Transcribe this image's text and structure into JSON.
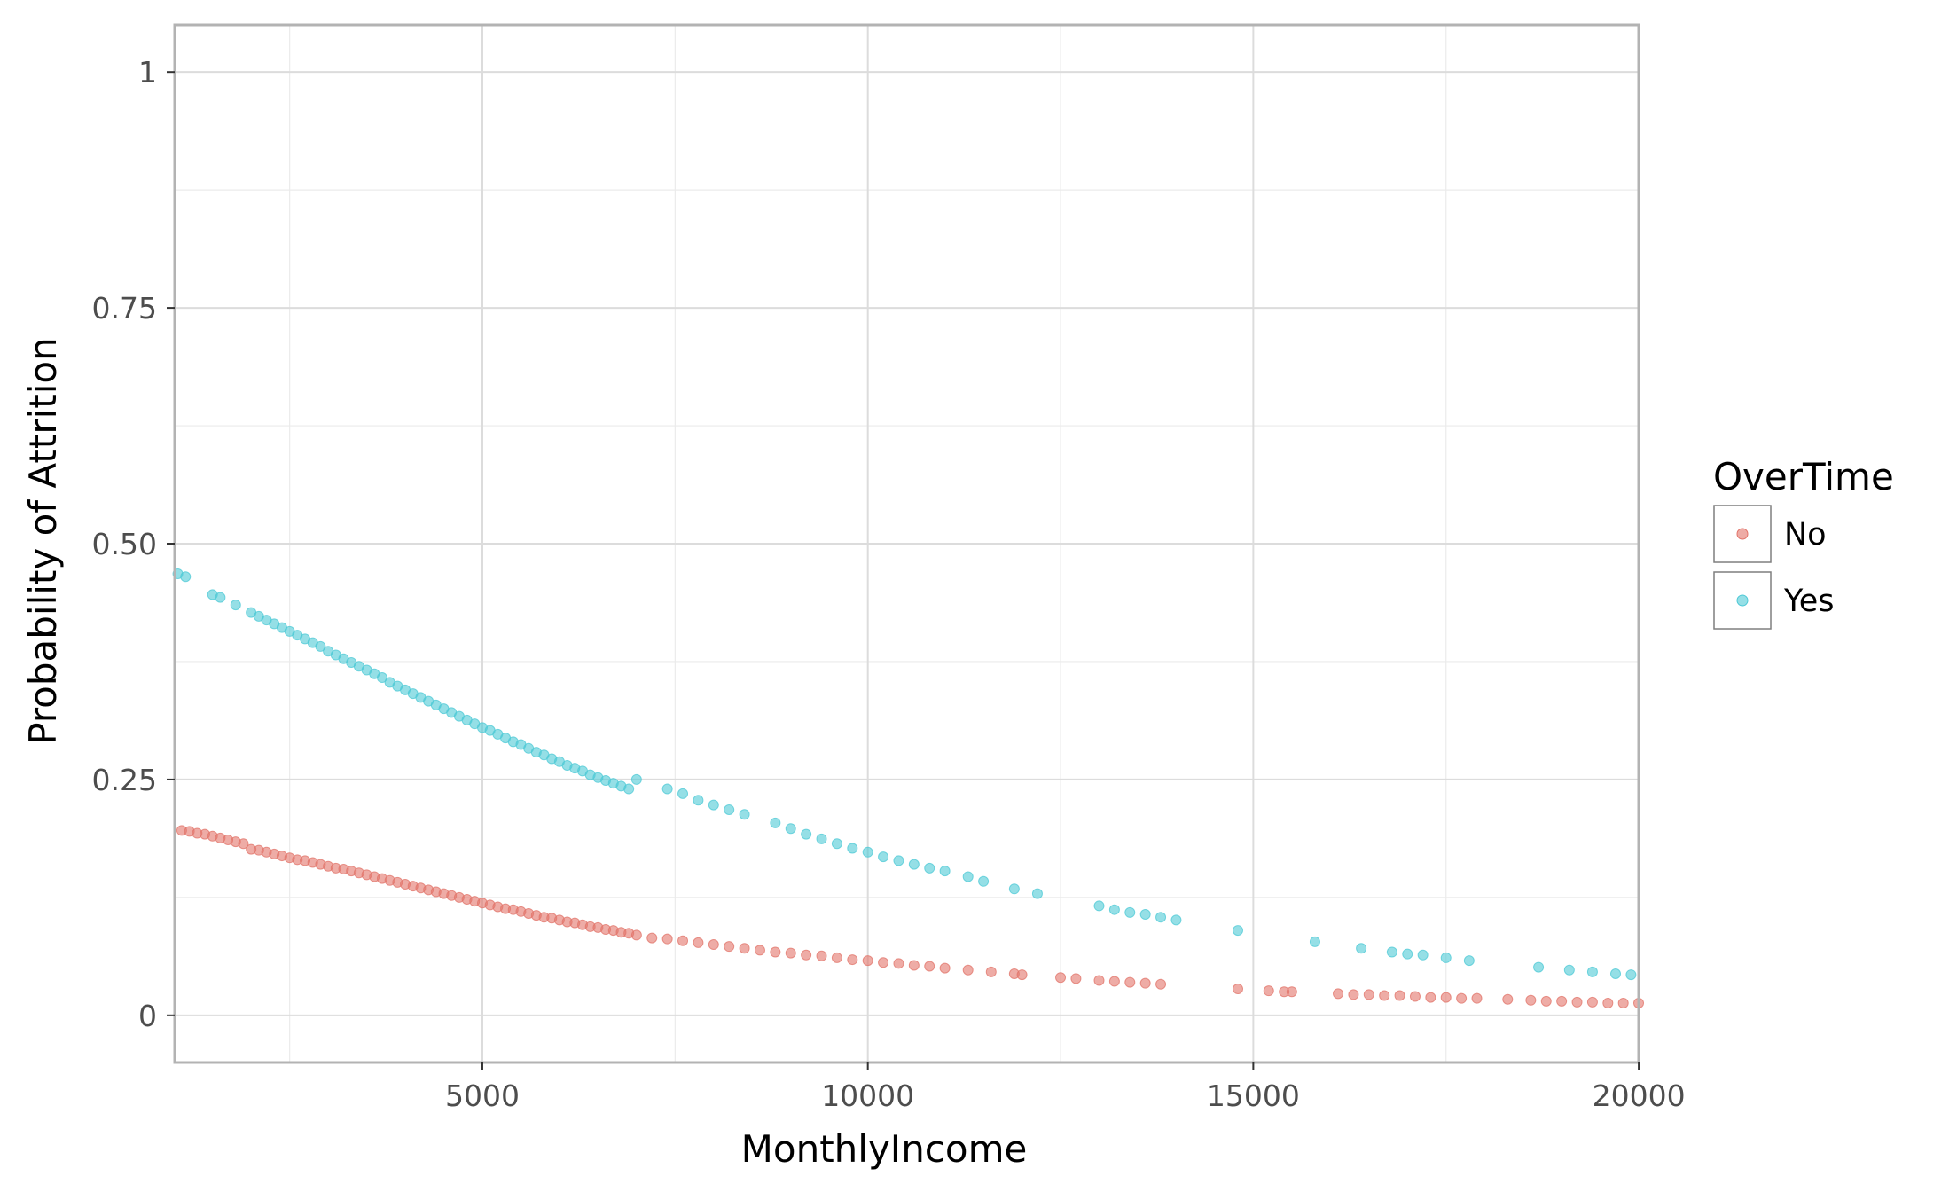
{
  "chart_data": {
    "type": "scatter",
    "title": "",
    "xlabel": "MonthlyIncome",
    "ylabel": "Probability of Attrition",
    "xlim": [
      1009,
      19999
    ],
    "ylim": [
      -0.05,
      1.05
    ],
    "x_ticks": [
      5000,
      10000,
      15000,
      20000
    ],
    "x_tick_labels": [
      "5000",
      "10000",
      "15000",
      "20000"
    ],
    "y_ticks": [
      0,
      0.25,
      0.5,
      0.75,
      1
    ],
    "y_tick_labels": [
      "0",
      "0.25",
      "0.50",
      "0.75",
      "1"
    ],
    "grid": true,
    "legend": {
      "title": "OverTime",
      "position": "right"
    },
    "series": [
      {
        "name": "No",
        "color": "#e2746a",
        "points": [
          [
            1100,
            0.196
          ],
          [
            1200,
            0.195
          ],
          [
            1300,
            0.193
          ],
          [
            1400,
            0.192
          ],
          [
            1500,
            0.19
          ],
          [
            1600,
            0.188
          ],
          [
            1700,
            0.186
          ],
          [
            1800,
            0.184
          ],
          [
            1900,
            0.182
          ],
          [
            2000,
            0.176
          ],
          [
            2100,
            0.175
          ],
          [
            2200,
            0.173
          ],
          [
            2300,
            0.171
          ],
          [
            2400,
            0.169
          ],
          [
            2500,
            0.167
          ],
          [
            2600,
            0.165
          ],
          [
            2700,
            0.164
          ],
          [
            2800,
            0.162
          ],
          [
            2900,
            0.16
          ],
          [
            3000,
            0.158
          ],
          [
            3100,
            0.156
          ],
          [
            3200,
            0.155
          ],
          [
            3300,
            0.153
          ],
          [
            3400,
            0.151
          ],
          [
            3500,
            0.149
          ],
          [
            3600,
            0.147
          ],
          [
            3700,
            0.145
          ],
          [
            3800,
            0.143
          ],
          [
            3900,
            0.141
          ],
          [
            4000,
            0.139
          ],
          [
            4100,
            0.137
          ],
          [
            4200,
            0.135
          ],
          [
            4300,
            0.133
          ],
          [
            4400,
            0.131
          ],
          [
            4500,
            0.129
          ],
          [
            4600,
            0.127
          ],
          [
            4700,
            0.125
          ],
          [
            4800,
            0.123
          ],
          [
            4900,
            0.121
          ],
          [
            5000,
            0.119
          ],
          [
            5100,
            0.117
          ],
          [
            5200,
            0.115
          ],
          [
            5300,
            0.113
          ],
          [
            5400,
            0.112
          ],
          [
            5500,
            0.11
          ],
          [
            5600,
            0.108
          ],
          [
            5700,
            0.106
          ],
          [
            5800,
            0.104
          ],
          [
            5900,
            0.103
          ],
          [
            6000,
            0.101
          ],
          [
            6100,
            0.099
          ],
          [
            6200,
            0.098
          ],
          [
            6300,
            0.096
          ],
          [
            6400,
            0.094
          ],
          [
            6500,
            0.093
          ],
          [
            6600,
            0.091
          ],
          [
            6700,
            0.09
          ],
          [
            6800,
            0.088
          ],
          [
            6900,
            0.087
          ],
          [
            7000,
            0.085
          ],
          [
            7200,
            0.082
          ],
          [
            7400,
            0.081
          ],
          [
            7600,
            0.079
          ],
          [
            7800,
            0.077
          ],
          [
            8000,
            0.075
          ],
          [
            8200,
            0.073
          ],
          [
            8400,
            0.071
          ],
          [
            8600,
            0.069
          ],
          [
            8800,
            0.067
          ],
          [
            9000,
            0.066
          ],
          [
            9200,
            0.064
          ],
          [
            9400,
            0.063
          ],
          [
            9600,
            0.061
          ],
          [
            9800,
            0.059
          ],
          [
            10000,
            0.058
          ],
          [
            10200,
            0.056
          ],
          [
            10400,
            0.055
          ],
          [
            10600,
            0.053
          ],
          [
            10800,
            0.052
          ],
          [
            11000,
            0.05
          ],
          [
            11300,
            0.048
          ],
          [
            11600,
            0.046
          ],
          [
            11900,
            0.044
          ],
          [
            12000,
            0.043
          ],
          [
            12500,
            0.04
          ],
          [
            12700,
            0.039
          ],
          [
            13000,
            0.037
          ],
          [
            13200,
            0.036
          ],
          [
            13400,
            0.035
          ],
          [
            13600,
            0.034
          ],
          [
            13800,
            0.033
          ],
          [
            14800,
            0.028
          ],
          [
            15200,
            0.026
          ],
          [
            15400,
            0.025
          ],
          [
            15500,
            0.025
          ],
          [
            16100,
            0.023
          ],
          [
            16300,
            0.022
          ],
          [
            16500,
            0.022
          ],
          [
            16700,
            0.021
          ],
          [
            16900,
            0.021
          ],
          [
            17100,
            0.02
          ],
          [
            17300,
            0.019
          ],
          [
            17500,
            0.019
          ],
          [
            17700,
            0.018
          ],
          [
            17900,
            0.018
          ],
          [
            18300,
            0.017
          ],
          [
            18600,
            0.016
          ],
          [
            18800,
            0.015
          ],
          [
            19000,
            0.015
          ],
          [
            19200,
            0.014
          ],
          [
            19400,
            0.014
          ],
          [
            19600,
            0.013
          ],
          [
            19800,
            0.013
          ],
          [
            19999,
            0.013
          ]
        ]
      },
      {
        "name": "Yes",
        "color": "#4ec9d6",
        "points": [
          [
            1050,
            0.468
          ],
          [
            1150,
            0.465
          ],
          [
            1500,
            0.446
          ],
          [
            1600,
            0.443
          ],
          [
            1800,
            0.435
          ],
          [
            2000,
            0.427
          ],
          [
            2100,
            0.423
          ],
          [
            2200,
            0.419
          ],
          [
            2300,
            0.415
          ],
          [
            2400,
            0.411
          ],
          [
            2500,
            0.407
          ],
          [
            2600,
            0.403
          ],
          [
            2700,
            0.399
          ],
          [
            2800,
            0.395
          ],
          [
            2900,
            0.391
          ],
          [
            3000,
            0.386
          ],
          [
            3100,
            0.382
          ],
          [
            3200,
            0.378
          ],
          [
            3300,
            0.374
          ],
          [
            3400,
            0.37
          ],
          [
            3500,
            0.366
          ],
          [
            3600,
            0.362
          ],
          [
            3700,
            0.358
          ],
          [
            3800,
            0.353
          ],
          [
            3900,
            0.349
          ],
          [
            4000,
            0.345
          ],
          [
            4100,
            0.341
          ],
          [
            4200,
            0.337
          ],
          [
            4300,
            0.333
          ],
          [
            4400,
            0.329
          ],
          [
            4500,
            0.325
          ],
          [
            4600,
            0.321
          ],
          [
            4700,
            0.317
          ],
          [
            4800,
            0.313
          ],
          [
            4900,
            0.309
          ],
          [
            5000,
            0.305
          ],
          [
            5100,
            0.302
          ],
          [
            5200,
            0.298
          ],
          [
            5300,
            0.294
          ],
          [
            5400,
            0.29
          ],
          [
            5500,
            0.287
          ],
          [
            5600,
            0.283
          ],
          [
            5700,
            0.279
          ],
          [
            5800,
            0.276
          ],
          [
            5900,
            0.272
          ],
          [
            6000,
            0.269
          ],
          [
            6100,
            0.265
          ],
          [
            6200,
            0.262
          ],
          [
            6300,
            0.259
          ],
          [
            6400,
            0.255
          ],
          [
            6500,
            0.252
          ],
          [
            6600,
            0.249
          ],
          [
            6700,
            0.246
          ],
          [
            6800,
            0.243
          ],
          [
            6900,
            0.24
          ],
          [
            7000,
            0.25
          ],
          [
            7400,
            0.24
          ],
          [
            7600,
            0.235
          ],
          [
            7800,
            0.228
          ],
          [
            8000,
            0.223
          ],
          [
            8200,
            0.218
          ],
          [
            8400,
            0.213
          ],
          [
            8800,
            0.204
          ],
          [
            9000,
            0.198
          ],
          [
            9200,
            0.192
          ],
          [
            9400,
            0.187
          ],
          [
            9600,
            0.182
          ],
          [
            9800,
            0.177
          ],
          [
            10000,
            0.173
          ],
          [
            10200,
            0.168
          ],
          [
            10400,
            0.164
          ],
          [
            10600,
            0.16
          ],
          [
            10800,
            0.156
          ],
          [
            11000,
            0.153
          ],
          [
            11300,
            0.147
          ],
          [
            11500,
            0.142
          ],
          [
            11900,
            0.134
          ],
          [
            12200,
            0.129
          ],
          [
            13000,
            0.116
          ],
          [
            13200,
            0.112
          ],
          [
            13400,
            0.109
          ],
          [
            13600,
            0.107
          ],
          [
            13800,
            0.104
          ],
          [
            14000,
            0.101
          ],
          [
            14800,
            0.09
          ],
          [
            15800,
            0.078
          ],
          [
            16400,
            0.071
          ],
          [
            16800,
            0.067
          ],
          [
            17000,
            0.065
          ],
          [
            17200,
            0.064
          ],
          [
            17500,
            0.061
          ],
          [
            17800,
            0.058
          ],
          [
            18700,
            0.051
          ],
          [
            19100,
            0.048
          ],
          [
            19400,
            0.046
          ],
          [
            19700,
            0.044
          ],
          [
            19900,
            0.043
          ]
        ]
      }
    ]
  }
}
